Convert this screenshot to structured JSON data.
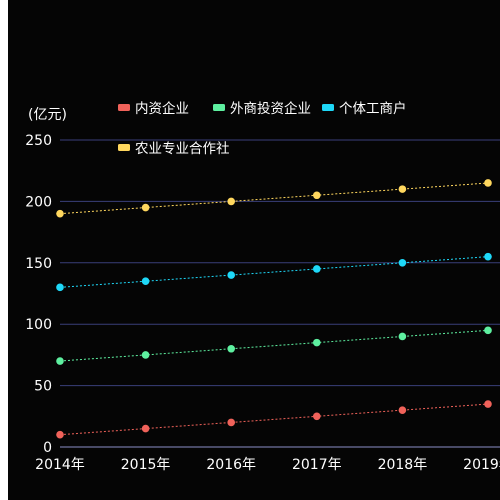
{
  "chart_data": {
    "type": "line",
    "ylabel": "(亿元)",
    "categories": [
      "2014年",
      "2015年",
      "2016年",
      "2017年",
      "2018年",
      "2019年"
    ],
    "ylim": [
      0,
      250
    ],
    "yticks": [
      "0",
      "50",
      "100",
      "150",
      "200",
      "250"
    ],
    "grid": true,
    "legend_placement": "top",
    "series": [
      {
        "name": "内资企业",
        "color": "#f0625a",
        "values": [
          10,
          15,
          20,
          25,
          30,
          35
        ]
      },
      {
        "name": "外商投资企业",
        "color": "#5ef0a0",
        "values": [
          70,
          75,
          80,
          85,
          90,
          95
        ]
      },
      {
        "name": "个体工商户",
        "color": "#1ed8f8",
        "values": [
          130,
          135,
          140,
          145,
          150,
          155
        ]
      },
      {
        "name": "农业专业合作社",
        "color": "#ffd75e",
        "values": [
          190,
          195,
          200,
          205,
          210,
          215
        ]
      }
    ]
  }
}
